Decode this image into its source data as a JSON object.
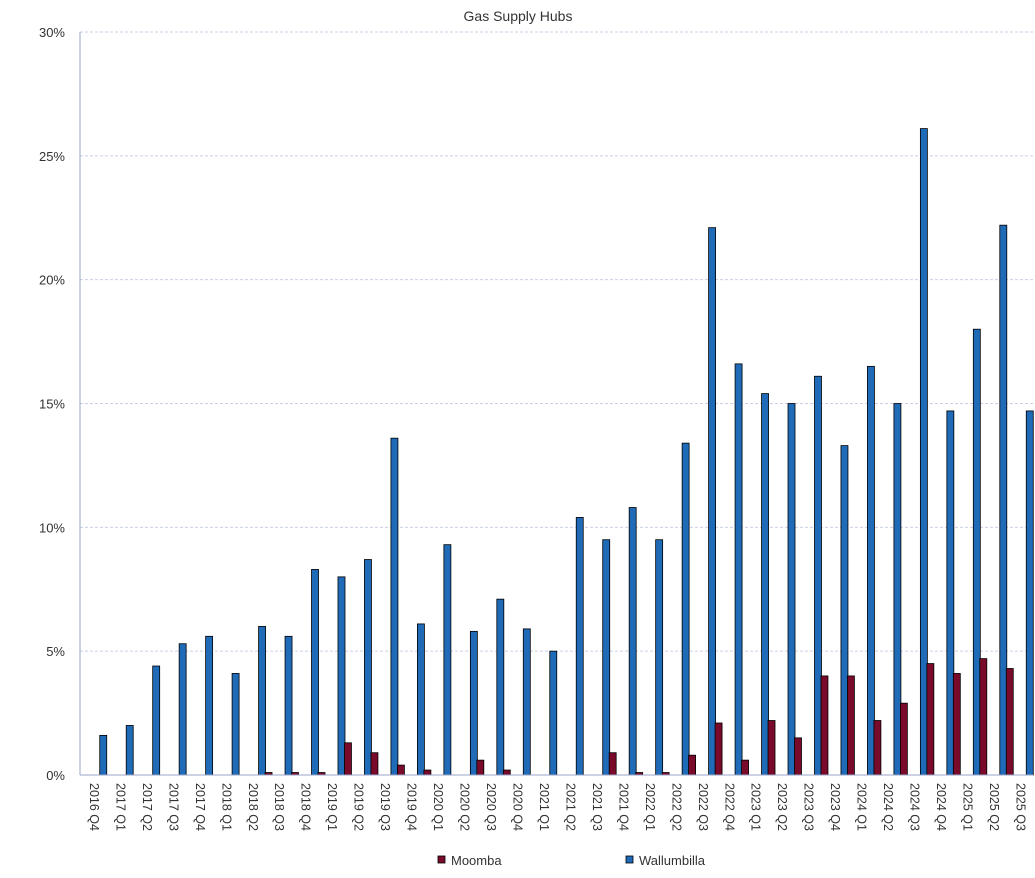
{
  "chart_data": {
    "type": "bar",
    "title": "Gas Supply Hubs",
    "xlabel": "",
    "ylabel": "",
    "ylim": [
      0,
      30
    ],
    "yticks": [
      0,
      5,
      10,
      15,
      20,
      25,
      30
    ],
    "ytick_labels": [
      "0%",
      "5%",
      "10%",
      "15%",
      "20%",
      "25%",
      "30%"
    ],
    "grid": true,
    "legend_position": "bottom",
    "categories": [
      "2016 Q4",
      "2017 Q1",
      "2017 Q2",
      "2017 Q3",
      "2017 Q4",
      "2018 Q1",
      "2018 Q2",
      "2018 Q3",
      "2018 Q4",
      "2019 Q1",
      "2019 Q2",
      "2019 Q3",
      "2019 Q4",
      "2020 Q1",
      "2020 Q2",
      "2020 Q3",
      "2020 Q4",
      "2021 Q1",
      "2021 Q2",
      "2021 Q3",
      "2021 Q4",
      "2022 Q1",
      "2022 Q2",
      "2022 Q3",
      "2022 Q4",
      "2023 Q1",
      "2023 Q2",
      "2023 Q3",
      "2023 Q4",
      "2024 Q1",
      "2024 Q2",
      "2024 Q3",
      "2024 Q4",
      "2025 Q1",
      "2025 Q2",
      "2025 Q3"
    ],
    "series": [
      {
        "name": "Moomba",
        "color": "#7a0a2a",
        "values": [
          0,
          0,
          0,
          0,
          0,
          0,
          0,
          0.1,
          0.1,
          0.1,
          1.3,
          0.9,
          0.4,
          0.2,
          0,
          0.6,
          0.2,
          0,
          0,
          0,
          0.9,
          0.1,
          0.1,
          0.8,
          2.1,
          0.6,
          2.2,
          1.5,
          4.0,
          4.0,
          2.2,
          2.9,
          4.5,
          4.1,
          4.7,
          4.3
        ]
      },
      {
        "name": "Wallumbilla",
        "color": "#1f6bb8",
        "values": [
          1.6,
          2.0,
          4.4,
          5.3,
          5.6,
          4.1,
          6.0,
          5.6,
          8.3,
          8.0,
          8.7,
          13.6,
          6.1,
          9.3,
          5.8,
          7.1,
          5.9,
          5.0,
          10.4,
          9.5,
          10.8,
          9.5,
          13.4,
          22.1,
          16.6,
          15.4,
          15.0,
          16.1,
          13.3,
          16.5,
          15.0,
          26.1,
          14.7,
          18.0,
          22.2,
          14.7
        ]
      }
    ]
  }
}
